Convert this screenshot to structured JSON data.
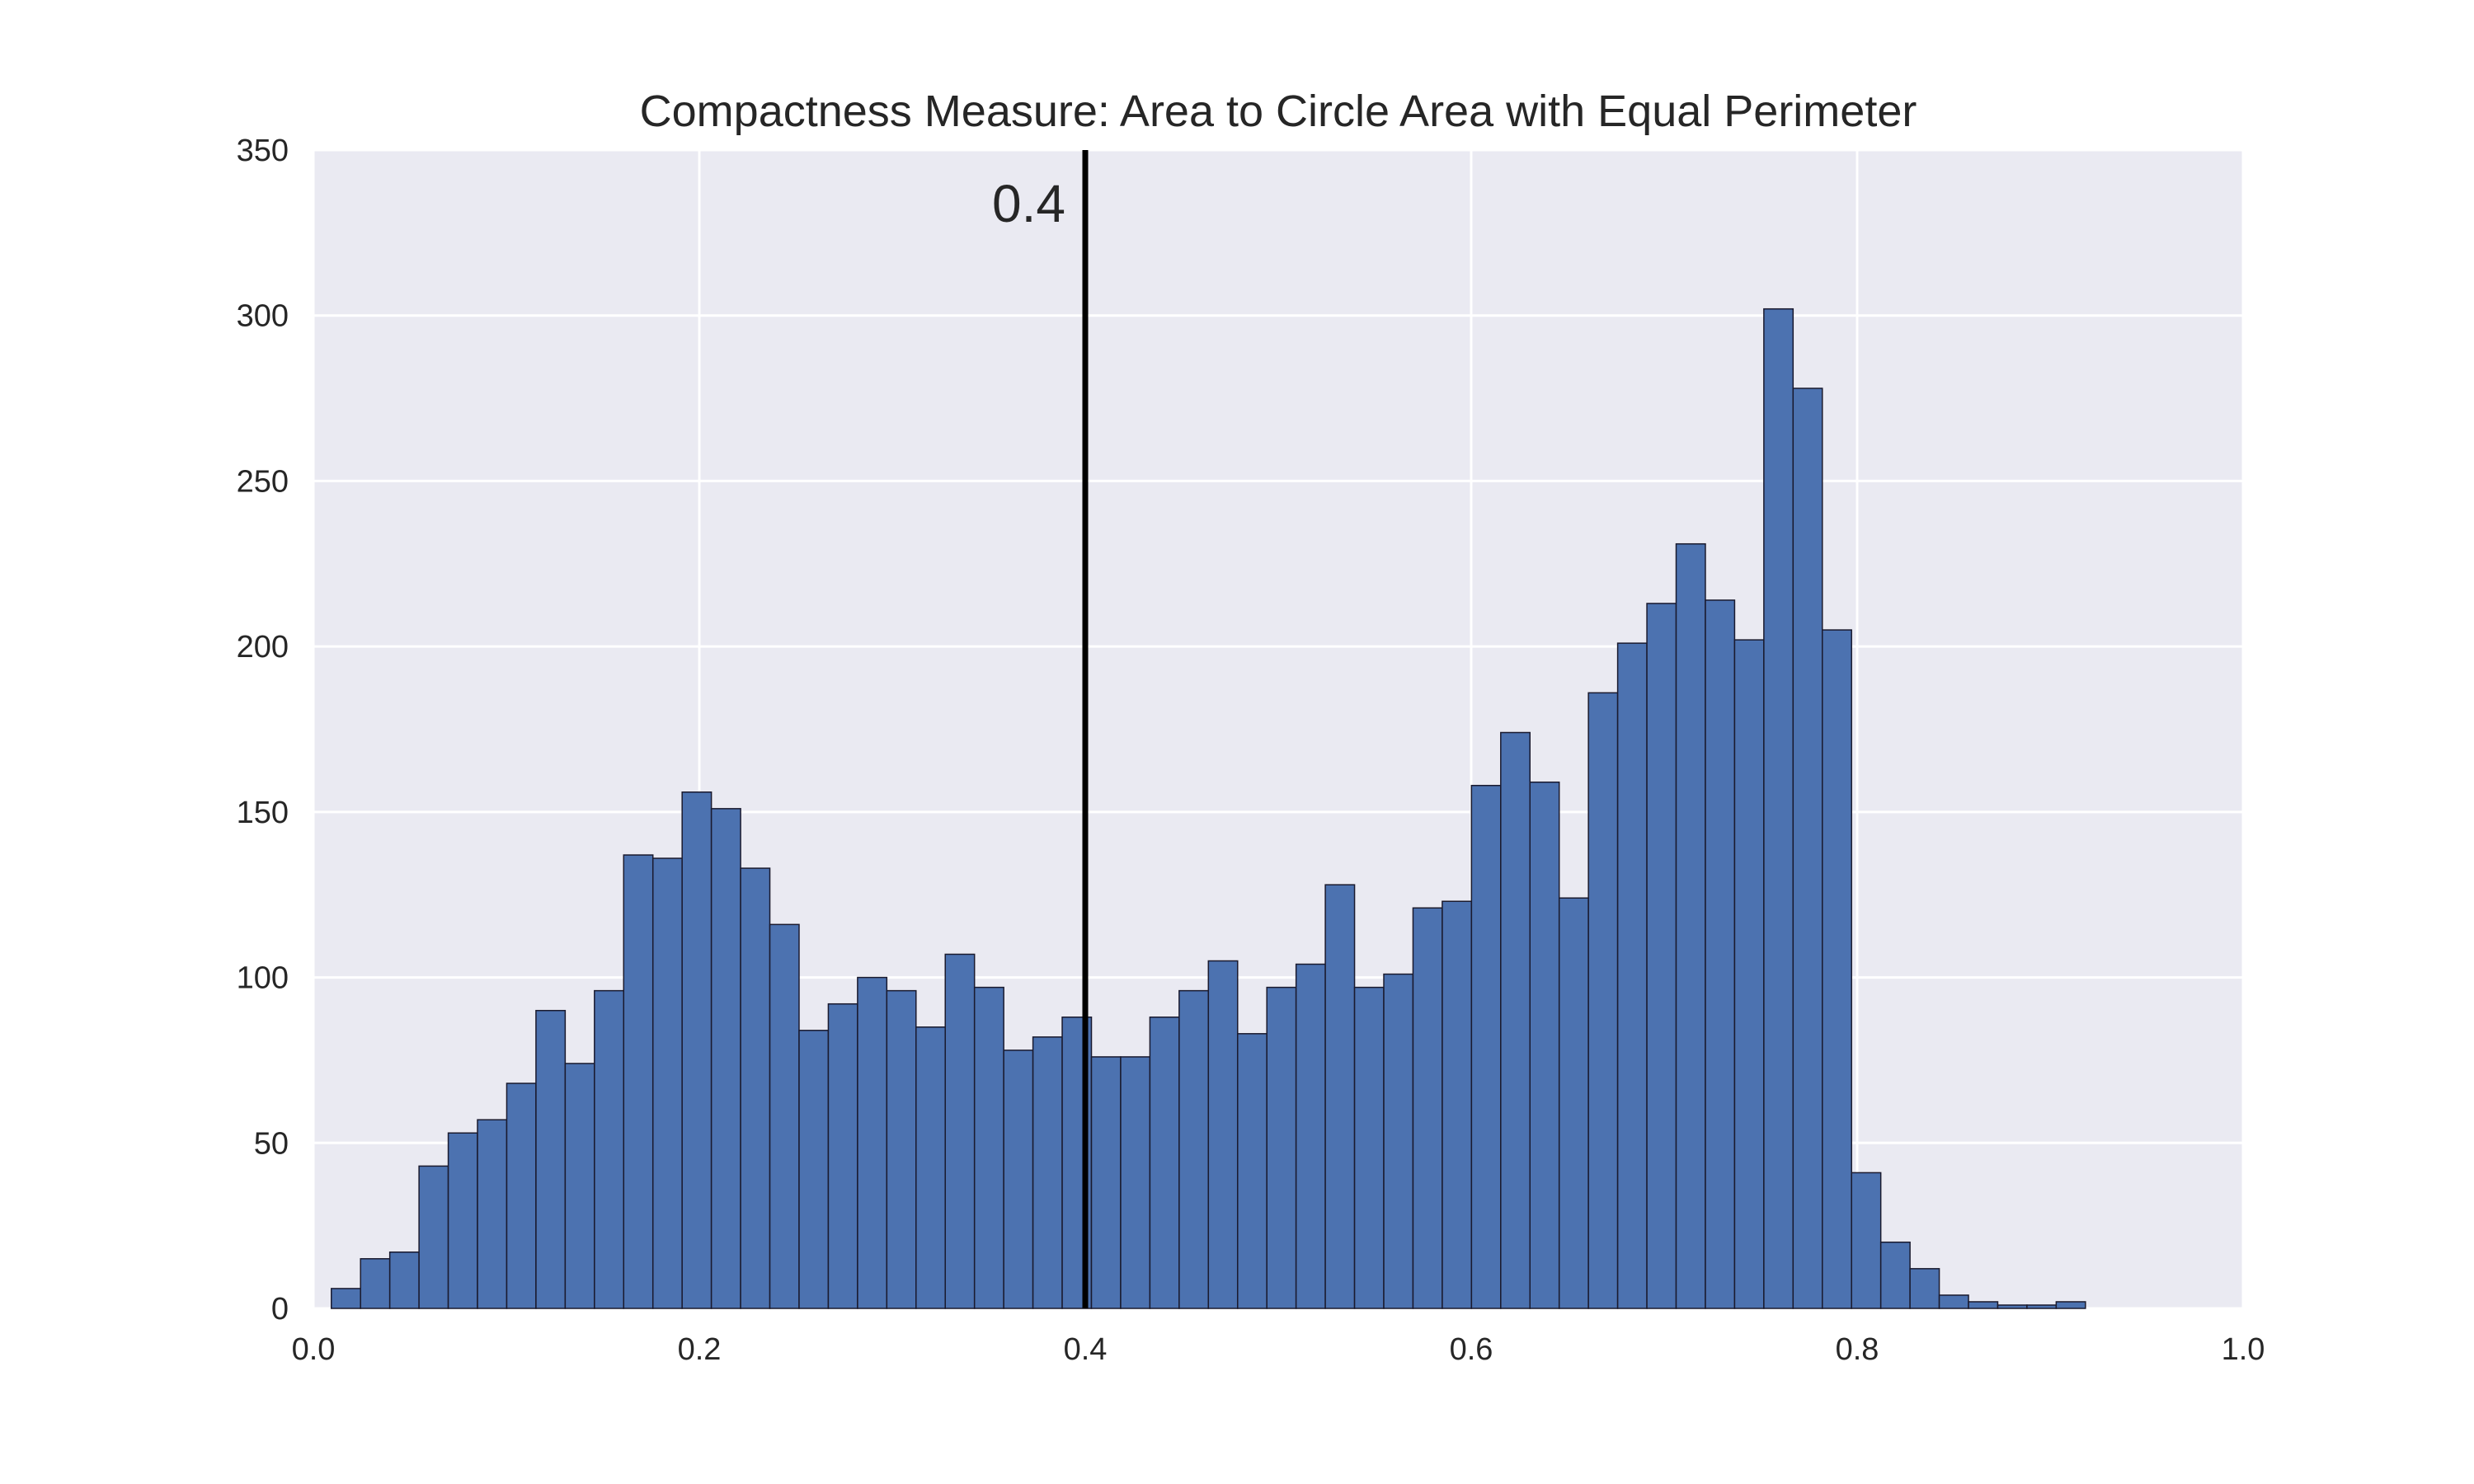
{
  "chart_data": {
    "type": "bar",
    "title": "Compactness Measure: Area to Circle Area with Equal Perimeter",
    "xlabel": "",
    "ylabel": "",
    "xlim": [
      0.0,
      1.0
    ],
    "ylim": [
      0,
      350
    ],
    "x_ticks": [
      "0.0",
      "0.2",
      "0.4",
      "0.6",
      "0.8",
      "1.0"
    ],
    "y_ticks": [
      "0",
      "50",
      "100",
      "150",
      "200",
      "250",
      "300",
      "350"
    ],
    "bin_start": 0.0093,
    "bin_width": 0.01515,
    "values": [
      6,
      15,
      17,
      43,
      53,
      57,
      68,
      90,
      74,
      96,
      137,
      136,
      156,
      151,
      133,
      116,
      84,
      92,
      100,
      96,
      85,
      107,
      97,
      78,
      82,
      88,
      76,
      76,
      88,
      96,
      105,
      83,
      97,
      104,
      128,
      97,
      101,
      121,
      123,
      158,
      174,
      159,
      124,
      186,
      201,
      213,
      231,
      214,
      202,
      302,
      278,
      205,
      41,
      20,
      12,
      4,
      2,
      1,
      1,
      2
    ],
    "grid": true,
    "bar_color": "#4c72b0",
    "background_color": "#eaeaf2",
    "reference_line": {
      "x": 0.4,
      "label": "0.4",
      "color": "#000000"
    }
  }
}
